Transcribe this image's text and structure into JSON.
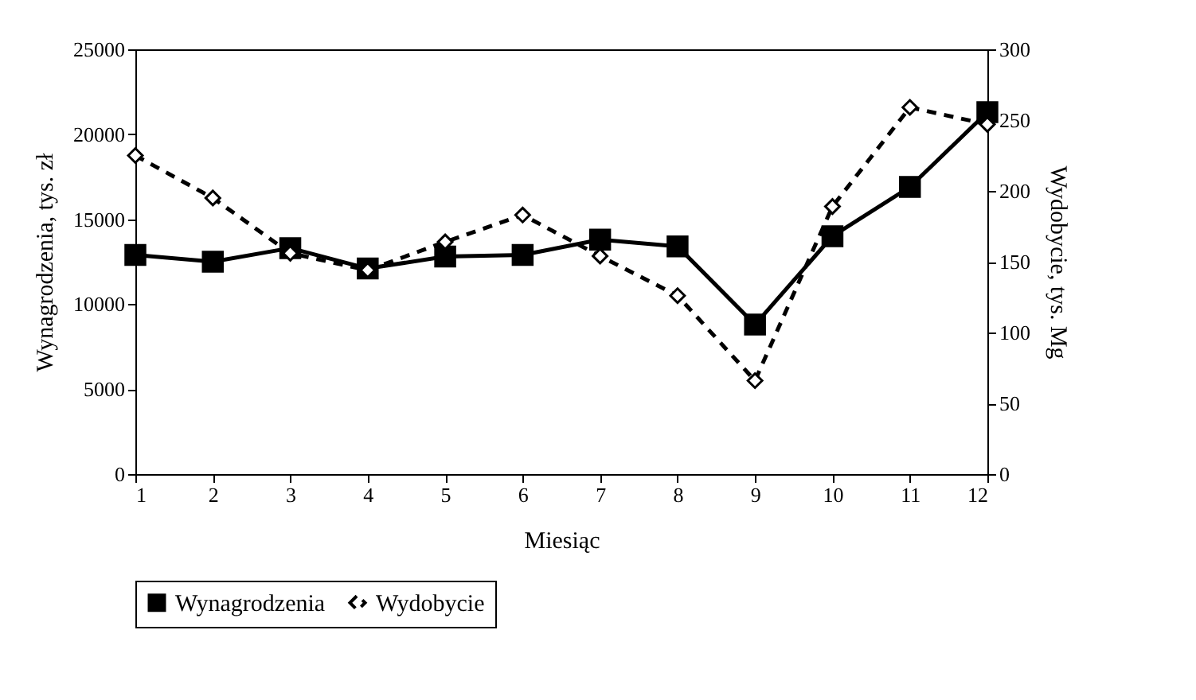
{
  "chart_data": {
    "type": "line",
    "xlabel": "Miesiąc",
    "ylabel": "Wynagrodzenia, tys. zł",
    "y2label": "Wydobycie, tys. Mg",
    "x": [
      1,
      2,
      3,
      4,
      5,
      6,
      7,
      8,
      9,
      10,
      11,
      12
    ],
    "xlim": [
      1,
      12
    ],
    "xticks": [
      1,
      2,
      3,
      4,
      5,
      6,
      7,
      8,
      9,
      10,
      11,
      12
    ],
    "ylim": [
      0,
      25000
    ],
    "yticks": [
      0,
      5000,
      10000,
      15000,
      20000,
      25000
    ],
    "y2lim": [
      0,
      300
    ],
    "y2ticks": [
      0,
      50,
      100,
      150,
      200,
      250,
      300
    ],
    "grid": false,
    "legend": "bottom",
    "series": [
      {
        "name": "Wynagrodzenia",
        "color": "#000000",
        "marker": "square",
        "line_style": "solid",
        "values": [
          12900,
          12500,
          13300,
          12100,
          12800,
          12900,
          13800,
          13400,
          8800,
          14000,
          16900,
          21300
        ]
      },
      {
        "name": "Wydobycie",
        "color": "#000000",
        "marker": "diamond",
        "line_style": "dashed",
        "axis": "y2",
        "values": [
          225,
          195,
          156,
          144,
          164,
          183,
          154,
          126,
          66,
          189,
          259,
          247
        ]
      }
    ]
  }
}
